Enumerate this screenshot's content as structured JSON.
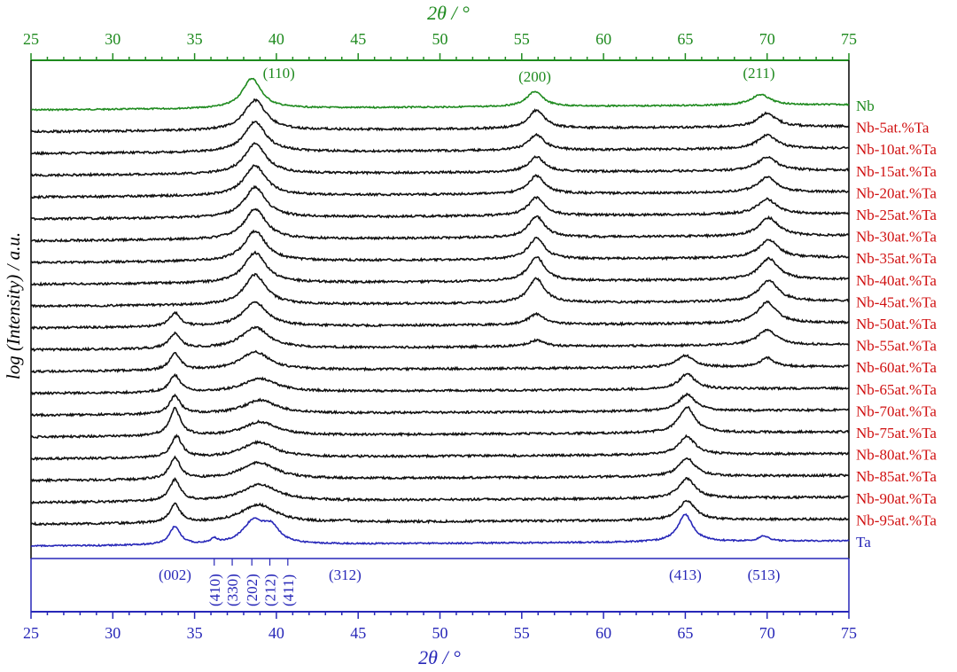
{
  "colors": {
    "nb": "#1e8a1e",
    "ta": "#2727b8",
    "mid": "#111111",
    "label_red": "#d01010"
  },
  "chart_data": {
    "type": "line",
    "top_xlabel": "2θ / °",
    "bottom_xlabel": "2θ / °",
    "ylabel": "log (Intensity) / a.u.",
    "xlim": [
      25,
      75
    ],
    "x_ticks": [
      25,
      30,
      35,
      40,
      45,
      50,
      55,
      60,
      65,
      70,
      75
    ],
    "x_tick_labels": [
      "25",
      "30",
      "35",
      "40",
      "45",
      "50",
      "55",
      "60",
      "65",
      "70",
      "75"
    ],
    "series": [
      {
        "name": "Nb",
        "color": "green",
        "peaks": [
          [
            38.5,
            1.0,
            0.7
          ],
          [
            55.8,
            0.5,
            0.6
          ],
          [
            69.6,
            0.35,
            0.7
          ]
        ]
      },
      {
        "name": "Nb-5at.%Ta",
        "color": "black",
        "peaks": [
          [
            38.7,
            1.0,
            0.8
          ],
          [
            55.9,
            0.6,
            0.6
          ],
          [
            70.0,
            0.45,
            0.7
          ]
        ]
      },
      {
        "name": "Nb-10at.%Ta",
        "color": "black",
        "peaks": [
          [
            38.7,
            1.0,
            0.8
          ],
          [
            55.9,
            0.5,
            0.6
          ],
          [
            70.0,
            0.45,
            0.7
          ]
        ]
      },
      {
        "name": "Nb-15at.%Ta",
        "color": "black",
        "peaks": [
          [
            38.7,
            1.0,
            0.8
          ],
          [
            55.9,
            0.5,
            0.6
          ],
          [
            70.0,
            0.45,
            0.7
          ]
        ]
      },
      {
        "name": "Nb-20at.%Ta",
        "color": "black",
        "peaks": [
          [
            38.7,
            1.0,
            0.8
          ],
          [
            55.9,
            0.6,
            0.6
          ],
          [
            70.0,
            0.5,
            0.7
          ]
        ]
      },
      {
        "name": "Nb-25at.%Ta",
        "color": "black",
        "peaks": [
          [
            38.7,
            1.0,
            0.8
          ],
          [
            55.9,
            0.6,
            0.6
          ],
          [
            70.0,
            0.5,
            0.7
          ]
        ]
      },
      {
        "name": "Nb-30at.%Ta",
        "color": "black",
        "peaks": [
          [
            38.7,
            1.0,
            0.8
          ],
          [
            55.9,
            0.7,
            0.6
          ],
          [
            70.1,
            0.6,
            0.7
          ]
        ]
      },
      {
        "name": "Nb-35at.%Ta",
        "color": "black",
        "peaks": [
          [
            38.7,
            1.0,
            0.8
          ],
          [
            55.9,
            0.7,
            0.6
          ],
          [
            70.1,
            0.6,
            0.7
          ]
        ]
      },
      {
        "name": "Nb-40at.%Ta",
        "color": "black",
        "peaks": [
          [
            38.7,
            1.0,
            0.8
          ],
          [
            55.9,
            0.8,
            0.6
          ],
          [
            70.1,
            0.7,
            0.7
          ]
        ]
      },
      {
        "name": "Nb-45at.%Ta",
        "color": "black",
        "peaks": [
          [
            38.7,
            1.0,
            0.8
          ],
          [
            55.9,
            0.8,
            0.6
          ],
          [
            70.1,
            0.7,
            0.7
          ]
        ]
      },
      {
        "name": "Nb-50at.%Ta",
        "color": "black",
        "peaks": [
          [
            33.8,
            0.45,
            0.4
          ],
          [
            38.7,
            0.8,
            0.9
          ],
          [
            55.9,
            0.35,
            0.6
          ],
          [
            70.0,
            0.7,
            0.7
          ]
        ]
      },
      {
        "name": "Nb-55at.%Ta",
        "color": "black",
        "peaks": [
          [
            33.8,
            0.5,
            0.4
          ],
          [
            38.7,
            0.7,
            1.0
          ],
          [
            55.9,
            0.2,
            0.6
          ],
          [
            70.0,
            0.5,
            0.7
          ]
        ]
      },
      {
        "name": "Nb-60at.%Ta",
        "color": "black",
        "peaks": [
          [
            33.8,
            0.55,
            0.4
          ],
          [
            38.7,
            0.6,
            1.1
          ],
          [
            65.0,
            0.4,
            0.6
          ],
          [
            70.0,
            0.3,
            0.5
          ]
        ]
      },
      {
        "name": "Nb-65at.%Ta",
        "color": "black",
        "peaks": [
          [
            33.8,
            0.55,
            0.4
          ],
          [
            39.0,
            0.45,
            1.2
          ],
          [
            65.1,
            0.5,
            0.6
          ]
        ]
      },
      {
        "name": "Nb-70at.%Ta",
        "color": "black",
        "peaks": [
          [
            33.8,
            0.6,
            0.4
          ],
          [
            39.0,
            0.45,
            1.2
          ],
          [
            65.1,
            0.55,
            0.6
          ]
        ]
      },
      {
        "name": "Nb-75at.%Ta",
        "color": "black",
        "peaks": [
          [
            33.8,
            0.9,
            0.4
          ],
          [
            39.0,
            0.45,
            1.2
          ],
          [
            65.1,
            0.85,
            0.6
          ]
        ]
      },
      {
        "name": "Nb-80at.%Ta",
        "color": "black",
        "peaks": [
          [
            33.9,
            0.7,
            0.4
          ],
          [
            38.9,
            0.5,
            1.2
          ],
          [
            65.1,
            0.6,
            0.6
          ]
        ]
      },
      {
        "name": "Nb-85at.%Ta",
        "color": "black",
        "peaks": [
          [
            33.8,
            0.7,
            0.4
          ],
          [
            38.9,
            0.55,
            1.3
          ],
          [
            65.1,
            0.6,
            0.6
          ]
        ]
      },
      {
        "name": "Nb-90at.%Ta",
        "color": "black",
        "peaks": [
          [
            33.8,
            0.7,
            0.4
          ],
          [
            39.0,
            0.55,
            1.3
          ],
          [
            65.1,
            0.65,
            0.6
          ]
        ]
      },
      {
        "name": "Nb-95at.%Ta",
        "color": "black",
        "peaks": [
          [
            33.8,
            0.6,
            0.4
          ],
          [
            38.9,
            0.6,
            1.3
          ],
          [
            44.2,
            0.08,
            0.3
          ],
          [
            65.1,
            0.65,
            0.6
          ]
        ]
      },
      {
        "name": "Ta",
        "color": "blue",
        "peaks": [
          [
            33.8,
            0.6,
            0.4
          ],
          [
            36.2,
            0.15,
            0.25
          ],
          [
            38.6,
            0.75,
            0.8
          ],
          [
            39.7,
            0.5,
            0.6
          ],
          [
            65.0,
            0.9,
            0.55
          ],
          [
            69.8,
            0.18,
            0.35
          ]
        ]
      }
    ],
    "nb_peak_labels": [
      {
        "text": "(110)",
        "x": 39.5
      },
      {
        "text": "(200)",
        "x": 55.8
      },
      {
        "text": "(211)",
        "x": 69.5
      }
    ],
    "ta_reflections": [
      {
        "text": "(002)",
        "x": 33.8,
        "rotated": false
      },
      {
        "text": "(410)",
        "x": 36.2,
        "rotated": true
      },
      {
        "text": "(330)",
        "x": 37.3,
        "rotated": true
      },
      {
        "text": "(202)",
        "x": 38.5,
        "rotated": true
      },
      {
        "text": "(212)",
        "x": 39.6,
        "rotated": true
      },
      {
        "text": "(411)",
        "x": 40.7,
        "rotated": true
      },
      {
        "text": "(312)",
        "x": 44.2,
        "rotated": false
      },
      {
        "text": "(413)",
        "x": 65.0,
        "rotated": false
      },
      {
        "text": "(513)",
        "x": 69.8,
        "rotated": false
      }
    ],
    "grid": false,
    "legend": "right-side labels"
  }
}
